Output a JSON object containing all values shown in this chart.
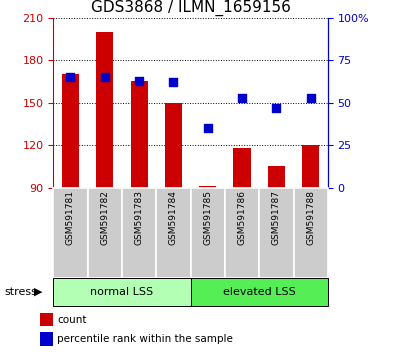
{
  "title": "GDS3868 / ILMN_1659156",
  "samples": [
    "GSM591781",
    "GSM591782",
    "GSM591783",
    "GSM591784",
    "GSM591785",
    "GSM591786",
    "GSM591787",
    "GSM591788"
  ],
  "counts": [
    170,
    200,
    165,
    150,
    91,
    118,
    105,
    120
  ],
  "percentiles": [
    65,
    65,
    63,
    62,
    35,
    53,
    47,
    53
  ],
  "bar_color": "#cc0000",
  "dot_color": "#0000cc",
  "ylim_left": [
    90,
    210
  ],
  "ylim_right": [
    0,
    100
  ],
  "yticks_left": [
    90,
    120,
    150,
    180,
    210
  ],
  "yticks_right": [
    0,
    25,
    50,
    75,
    100
  ],
  "groups": [
    {
      "label": "normal LSS",
      "start": 0,
      "end": 4,
      "color": "#b3ffb3"
    },
    {
      "label": "elevated LSS",
      "start": 4,
      "end": 8,
      "color": "#55ee55"
    }
  ],
  "stress_label": "stress",
  "legend_items": [
    {
      "color": "#cc0000",
      "label": "count"
    },
    {
      "color": "#0000cc",
      "label": "percentile rank within the sample"
    }
  ],
  "bar_width": 0.5,
  "title_fontsize": 11,
  "axis_label_color_left": "#cc0000",
  "axis_label_color_right": "#0000cc",
  "sample_box_color": "#cccccc",
  "bg_color": "#ffffff"
}
